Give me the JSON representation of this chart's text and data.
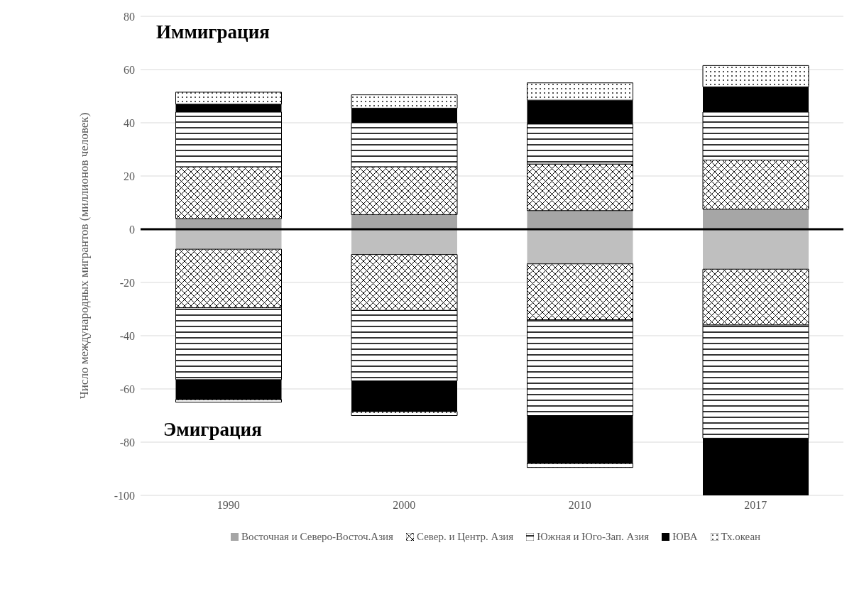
{
  "chart_data": {
    "type": "bar",
    "stacked": true,
    "ylabel": "Число международных мигрантов (миллионов человек)",
    "categories": [
      "1990",
      "2000",
      "2010",
      "2017"
    ],
    "ylim": [
      -100,
      80
    ],
    "yticks": [
      -100,
      -80,
      -60,
      -40,
      -20,
      0,
      20,
      40,
      60,
      80
    ],
    "grid": "y",
    "legend": "bottom",
    "annotations": [
      "Иммиграция",
      "Эмиграция"
    ],
    "ref_lines": [
      {
        "axis": "y",
        "value": 0,
        "color": "#000000"
      }
    ],
    "series": [
      {
        "name": "Восточная и Северо-Восточ.Азия",
        "color": "#a6a6a6",
        "values": [
          4,
          5.5,
          7,
          7.5
        ]
      },
      {
        "name": "Север. и Центр. Азия",
        "color": "#000000",
        "values": [
          19.5,
          18,
          17.5,
          18.5
        ]
      },
      {
        "name": "Южная и Юго-Зап. Азия",
        "color": "#000000",
        "values": [
          20.5,
          16.5,
          15,
          18
        ]
      },
      {
        "name": "ЮВА",
        "color": "#000000",
        "values": [
          3,
          5.5,
          9,
          9.5
        ]
      },
      {
        "name": "Тх.океан",
        "color": "#000000",
        "values": [
          4.5,
          5,
          6.5,
          8
        ]
      },
      {
        "color": "#bfbfbf",
        "values": [
          -7.5,
          -9.5,
          -13,
          -15
        ]
      },
      {
        "color": "#000000",
        "values": [
          -22,
          -21,
          -21,
          -21
        ]
      },
      {
        "color": "#000000",
        "values": [
          -27,
          -26.5,
          -36,
          -42.5
        ]
      },
      {
        "color": "#000000",
        "values": [
          -7.5,
          -11.5,
          -18,
          -21.5
        ]
      },
      {
        "color": "#000000",
        "values": [
          -1,
          -1.5,
          -1.5,
          null
        ]
      }
    ]
  }
}
